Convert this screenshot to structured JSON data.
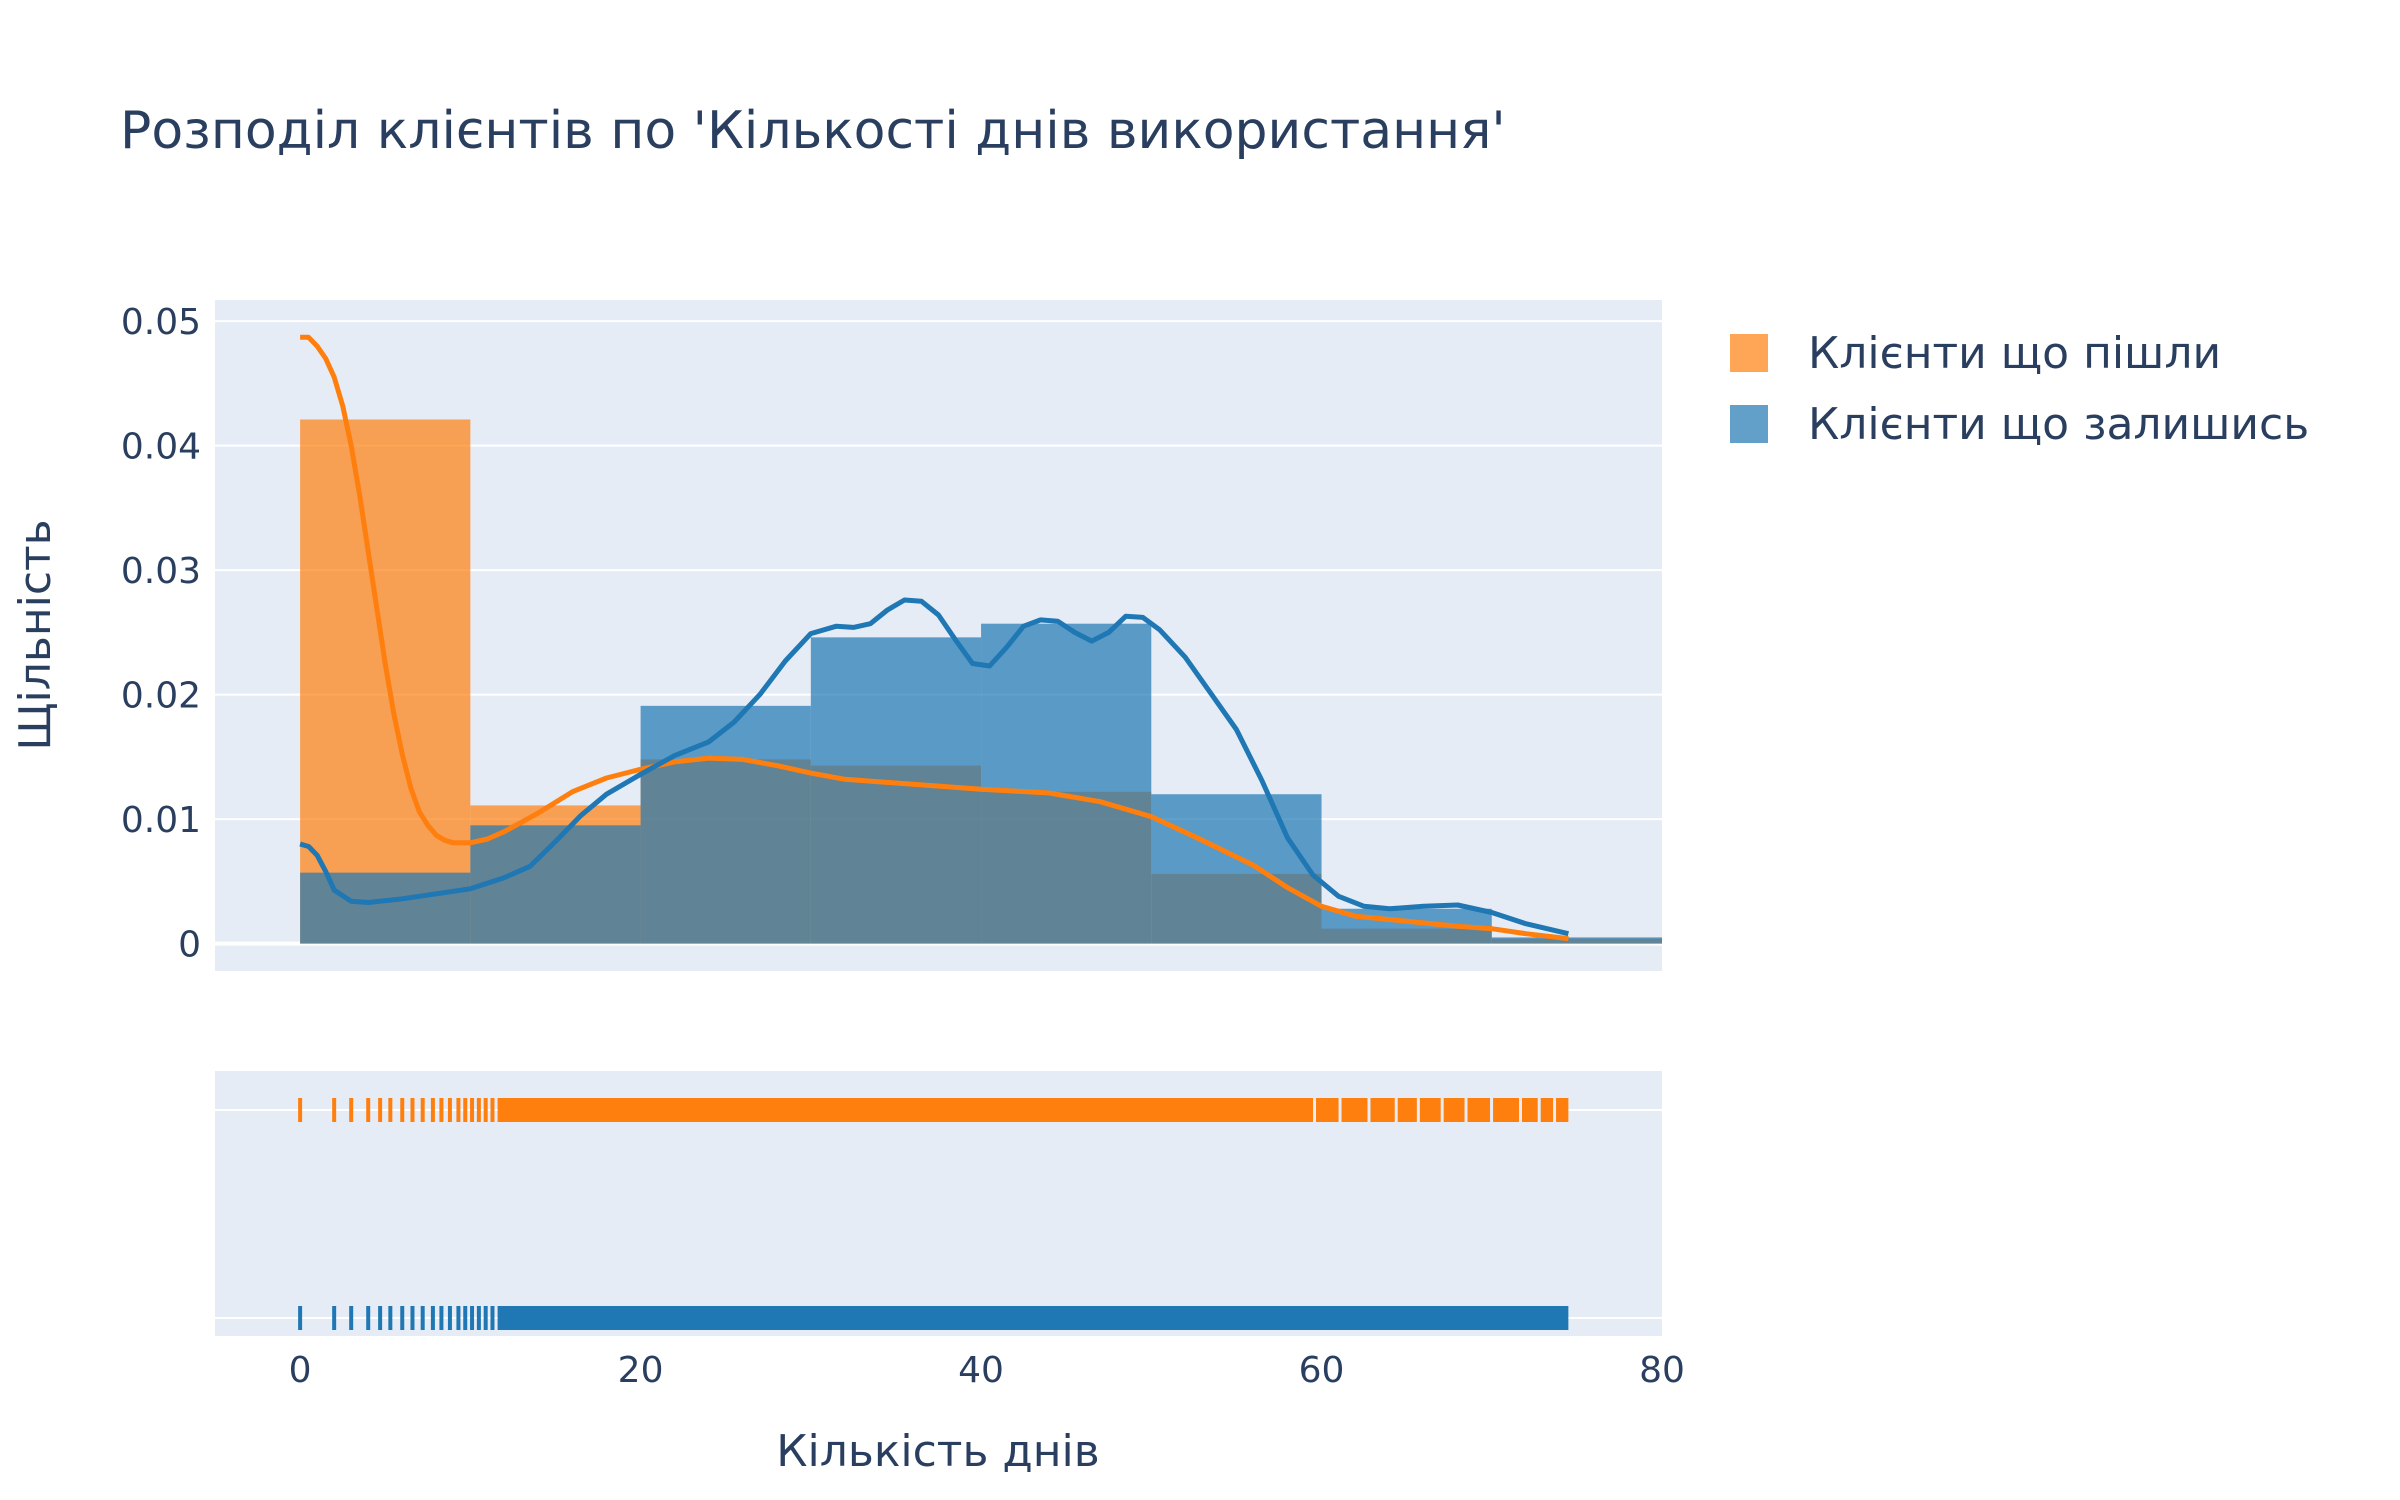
{
  "chart_data": {
    "type": "histogram-density-rug",
    "title": "Розподіл клієнтів по 'Кількості днів використання'",
    "xlabel": "Кількість днів",
    "ylabel": "Щільність",
    "xlim": [
      -5,
      80
    ],
    "ylim": [
      -0.0022,
      0.0517
    ],
    "x_ticks": [
      0,
      20,
      40,
      60,
      80
    ],
    "x_tick_labels": [
      "0",
      "20",
      "40",
      "60",
      "80"
    ],
    "y_ticks": [
      0,
      0.01,
      0.02,
      0.03,
      0.04,
      0.05
    ],
    "y_tick_labels": [
      "0",
      "0.01",
      "0.02",
      "0.03",
      "0.04",
      "0.05"
    ],
    "grid": true,
    "legend_position": "right",
    "bin_edges": [
      0,
      10,
      20,
      30,
      40,
      50,
      60,
      70,
      80
    ],
    "series": [
      {
        "name": "Клієнти що пішли",
        "color": "#ff7f0e",
        "hist": [
          0.0421,
          0.0111,
          0.0148,
          0.0143,
          0.0122,
          0.0056,
          0.0012,
          0.0004
        ],
        "kde": [
          [
            0,
            0.0487
          ],
          [
            0.5,
            0.0487
          ],
          [
            1,
            0.048
          ],
          [
            1.5,
            0.047
          ],
          [
            2,
            0.0455
          ],
          [
            2.5,
            0.0432
          ],
          [
            3,
            0.04
          ],
          [
            3.5,
            0.036
          ],
          [
            4,
            0.0315
          ],
          [
            4.5,
            0.027
          ],
          [
            5,
            0.0225
          ],
          [
            5.5,
            0.0185
          ],
          [
            6,
            0.0152
          ],
          [
            6.5,
            0.0125
          ],
          [
            7,
            0.0106
          ],
          [
            7.5,
            0.0095
          ],
          [
            8,
            0.0087
          ],
          [
            8.5,
            0.0083
          ],
          [
            9,
            0.0081
          ],
          [
            10,
            0.0081
          ],
          [
            11,
            0.0084
          ],
          [
            12,
            0.009
          ],
          [
            14,
            0.0105
          ],
          [
            16,
            0.0122
          ],
          [
            18,
            0.0133
          ],
          [
            20,
            0.014
          ],
          [
            22,
            0.0146
          ],
          [
            24,
            0.0149
          ],
          [
            26,
            0.0148
          ],
          [
            28,
            0.0143
          ],
          [
            30,
            0.0137
          ],
          [
            32,
            0.0132
          ],
          [
            35,
            0.0129
          ],
          [
            38,
            0.0126
          ],
          [
            40,
            0.0124
          ],
          [
            44,
            0.0121
          ],
          [
            47,
            0.0114
          ],
          [
            50,
            0.0102
          ],
          [
            53,
            0.0083
          ],
          [
            56,
            0.0063
          ],
          [
            58,
            0.0045
          ],
          [
            60,
            0.003
          ],
          [
            62,
            0.0022
          ],
          [
            65,
            0.0018
          ],
          [
            68,
            0.0014
          ],
          [
            70,
            0.0012
          ],
          [
            72,
            0.0008
          ],
          [
            74.5,
            0.0004
          ]
        ],
        "rug_range": [
          0,
          74.5
        ]
      },
      {
        "name": "Клієнти що залишись",
        "color": "#1f77b4",
        "hist": [
          0.0057,
          0.0095,
          0.0191,
          0.0246,
          0.0257,
          0.012,
          0.0028,
          0.0005
        ],
        "kde": [
          [
            0,
            0.008
          ],
          [
            0.5,
            0.0078
          ],
          [
            1,
            0.0071
          ],
          [
            1.5,
            0.0058
          ],
          [
            2,
            0.0043
          ],
          [
            3,
            0.0034
          ],
          [
            4,
            0.0033
          ],
          [
            6,
            0.0036
          ],
          [
            8,
            0.004
          ],
          [
            10,
            0.0044
          ],
          [
            12,
            0.0053
          ],
          [
            13.5,
            0.0062
          ],
          [
            15,
            0.0082
          ],
          [
            16.5,
            0.0103
          ],
          [
            18,
            0.012
          ],
          [
            20,
            0.0136
          ],
          [
            22,
            0.0151
          ],
          [
            24,
            0.0162
          ],
          [
            25.5,
            0.0178
          ],
          [
            27,
            0.02
          ],
          [
            28.5,
            0.0227
          ],
          [
            30,
            0.0249
          ],
          [
            31.5,
            0.0255
          ],
          [
            32.5,
            0.0254
          ],
          [
            33.5,
            0.0257
          ],
          [
            34.5,
            0.0268
          ],
          [
            35.5,
            0.0276
          ],
          [
            36.5,
            0.0275
          ],
          [
            37.5,
            0.0264
          ],
          [
            38.5,
            0.0244
          ],
          [
            39.5,
            0.0225
          ],
          [
            40.5,
            0.0223
          ],
          [
            41.5,
            0.0238
          ],
          [
            42.5,
            0.0255
          ],
          [
            43.5,
            0.026
          ],
          [
            44.5,
            0.0259
          ],
          [
            45.5,
            0.025
          ],
          [
            46.5,
            0.0243
          ],
          [
            47.5,
            0.025
          ],
          [
            48.5,
            0.0263
          ],
          [
            49.5,
            0.0262
          ],
          [
            50.5,
            0.0252
          ],
          [
            52,
            0.023
          ],
          [
            53.5,
            0.0201
          ],
          [
            55,
            0.0172
          ],
          [
            56.5,
            0.0131
          ],
          [
            58,
            0.0085
          ],
          [
            59.5,
            0.0055
          ],
          [
            61,
            0.0038
          ],
          [
            62.5,
            0.003
          ],
          [
            64,
            0.0028
          ],
          [
            66,
            0.003
          ],
          [
            68,
            0.0031
          ],
          [
            70,
            0.0025
          ],
          [
            72,
            0.0016
          ],
          [
            74.5,
            0.0008
          ]
        ],
        "rug_range": [
          0,
          74.5
        ]
      }
    ]
  }
}
